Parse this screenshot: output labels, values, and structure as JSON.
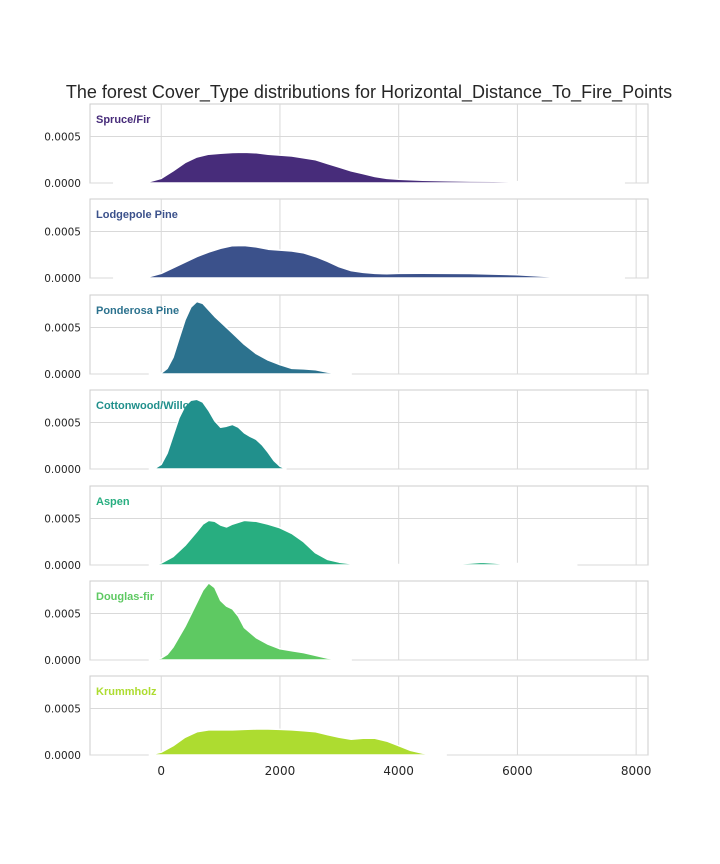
{
  "chart_data": {
    "type": "area",
    "title": "The forest Cover_Type distributions for Horizontal_Distance_To_Fire_Points",
    "xlabel": "",
    "ylabel": "",
    "xlim": [
      -1200,
      8200
    ],
    "ylim": [
      0,
      0.00085
    ],
    "x_ticks": [
      0,
      2000,
      4000,
      6000,
      8000
    ],
    "x_tick_labels": [
      "0",
      "2000",
      "4000",
      "6000",
      "8000"
    ],
    "y_ticks": [
      0,
      0.0005
    ],
    "y_tick_labels": [
      "0.0000",
      "0.0005"
    ],
    "grid": true,
    "series": [
      {
        "name": "Spruce/Fir",
        "color": "#472C7A",
        "x": [
          -800,
          -400,
          -200,
          0,
          200,
          400,
          600,
          800,
          1000,
          1200,
          1400,
          1600,
          1800,
          2000,
          2200,
          2400,
          2600,
          2800,
          3000,
          3200,
          3400,
          3600,
          3800,
          4000,
          4400,
          4800,
          5200,
          5600,
          6000,
          6400,
          6800,
          7200,
          7600,
          7800
        ],
        "values": [
          0,
          4e-06,
          1.5e-05,
          5e-05,
          0.00013,
          0.00022,
          0.00028,
          0.00031,
          0.00032,
          0.000328,
          0.00033,
          0.000325,
          0.00031,
          0.0003,
          0.00029,
          0.00027,
          0.00025,
          0.00021,
          0.00017,
          0.00013,
          0.0001,
          7e-05,
          5e-05,
          4e-05,
          3e-05,
          2.5e-05,
          2e-05,
          1.8e-05,
          1.5e-05,
          1.2e-05,
          1e-05,
          8e-06,
          4e-06,
          0
        ]
      },
      {
        "name": "Lodgepole Pine",
        "color": "#3B518B",
        "x": [
          -800,
          -400,
          -200,
          0,
          200,
          400,
          600,
          800,
          1000,
          1200,
          1400,
          1600,
          1800,
          2000,
          2200,
          2400,
          2600,
          2800,
          3000,
          3200,
          3400,
          3600,
          3800,
          4000,
          4400,
          4800,
          5200,
          5600,
          6000,
          6400,
          6800,
          7200,
          7600,
          7800
        ],
        "values": [
          0,
          4e-06,
          1.5e-05,
          5e-05,
          0.00011,
          0.00017,
          0.00023,
          0.00028,
          0.00032,
          0.000348,
          0.00035,
          0.000335,
          0.00031,
          0.0003,
          0.00029,
          0.00027,
          0.00023,
          0.00018,
          0.00012,
          8e-05,
          6e-05,
          5e-05,
          4.5e-05,
          5e-05,
          5.2e-05,
          5e-05,
          4.8e-05,
          4.2e-05,
          3.5e-05,
          2e-05,
          1e-05,
          5e-06,
          2e-06,
          0
        ]
      },
      {
        "name": "Ponderosa Pine",
        "color": "#2C728E",
        "x": [
          -200,
          0,
          100,
          200,
          300,
          400,
          500,
          600,
          700,
          800,
          900,
          1000,
          1200,
          1400,
          1600,
          1800,
          2000,
          2200,
          2400,
          2600,
          2800,
          3000,
          3200
        ],
        "values": [
          0,
          1e-05,
          6e-05,
          0.00018,
          0.00038,
          0.00058,
          0.00072,
          0.00078,
          0.00076,
          0.00069,
          0.00062,
          0.00056,
          0.00044,
          0.00032,
          0.00022,
          0.00015,
          0.0001,
          6e-05,
          5.5e-05,
          4.5e-05,
          2e-05,
          8e-06,
          0
        ]
      },
      {
        "name": "Cottonwood/Willow",
        "color": "#21908C",
        "x": [
          -200,
          -100,
          0,
          100,
          200,
          300,
          400,
          500,
          600,
          700,
          800,
          900,
          1000,
          1100,
          1200,
          1300,
          1400,
          1500,
          1600,
          1700,
          1800,
          1900,
          2000,
          2100
        ],
        "values": [
          0,
          1e-05,
          5e-05,
          0.00017,
          0.00036,
          0.00055,
          0.00068,
          0.00074,
          0.00075,
          0.00072,
          0.00063,
          0.00052,
          0.00045,
          0.00046,
          0.00048,
          0.00045,
          0.00039,
          0.00035,
          0.00032,
          0.00026,
          0.00018,
          9e-05,
          3e-05,
          0
        ]
      },
      {
        "name": "Aspen",
        "color": "#28AE80",
        "x": [
          -200,
          0,
          200,
          400,
          600,
          700,
          800,
          900,
          1000,
          1100,
          1200,
          1400,
          1600,
          1800,
          2000,
          2200,
          2400,
          2600,
          2800,
          3000,
          3200,
          3600,
          4000,
          4400,
          4800,
          5200,
          5400,
          5600,
          5800,
          6000,
          6200,
          6600,
          7000
        ],
        "values": [
          0,
          2e-05,
          9e-05,
          0.00021,
          0.00036,
          0.00044,
          0.00048,
          0.00047,
          0.00043,
          0.00041,
          0.00044,
          0.00048,
          0.00047,
          0.00044,
          0.0004,
          0.00034,
          0.00025,
          0.00013,
          6e-05,
          3e-05,
          1.5e-05,
          1e-05,
          5e-06,
          3e-06,
          6e-06,
          2e-05,
          3e-05,
          2.2e-05,
          1.2e-05,
          1.6e-05,
          8e-06,
          3e-06,
          0
        ]
      },
      {
        "name": "Douglas-fir",
        "color": "#5EC962",
        "x": [
          -200,
          0,
          100,
          200,
          400,
          600,
          700,
          800,
          900,
          1000,
          1100,
          1200,
          1300,
          1400,
          1600,
          1800,
          2000,
          2200,
          2400,
          2600,
          2800,
          3000,
          3200
        ],
        "values": [
          0,
          2e-05,
          6e-05,
          0.00014,
          0.00036,
          0.00062,
          0.00075,
          0.00083,
          0.00078,
          0.00064,
          0.00058,
          0.00055,
          0.00047,
          0.00035,
          0.00024,
          0.00017,
          0.00012,
          0.0001,
          8e-05,
          5e-05,
          2e-05,
          8e-06,
          0
        ]
      },
      {
        "name": "Krummholz",
        "color": "#ADDC30",
        "x": [
          -200,
          0,
          200,
          400,
          600,
          800,
          1000,
          1200,
          1400,
          1600,
          1800,
          2000,
          2200,
          2400,
          2600,
          2800,
          3000,
          3200,
          3400,
          3600,
          3800,
          4000,
          4200,
          4400,
          4600,
          4800
        ],
        "values": [
          0,
          3e-05,
          0.0001,
          0.00019,
          0.00025,
          0.00027,
          0.000272,
          0.00027,
          0.000275,
          0.00028,
          0.00028,
          0.000275,
          0.00027,
          0.00026,
          0.00025,
          0.00022,
          0.00019,
          0.00017,
          0.00018,
          0.00018,
          0.00015,
          0.0001,
          5e-05,
          2e-05,
          5e-06,
          0
        ]
      }
    ]
  }
}
